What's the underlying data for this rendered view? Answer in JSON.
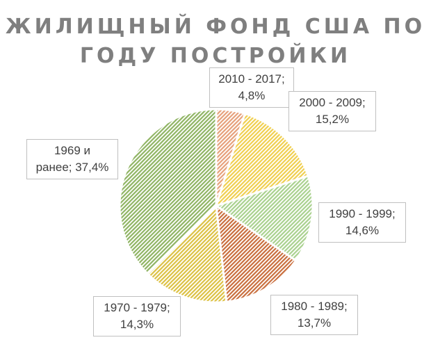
{
  "chart_data": {
    "type": "pie",
    "title_lines": [
      "ЖИЛИЩНЫЙ ФОНД США ПО",
      "ГОДУ ПОСТРОЙКИ"
    ],
    "slices": [
      {
        "category": "2010 - 2017",
        "value": 4.8,
        "value_label": "4,8%",
        "color": "#e6a07a"
      },
      {
        "category": "2000 - 2009",
        "value": 15.2,
        "value_label": "15,2%",
        "color": "#f0cf4e"
      },
      {
        "category": "1990 - 1999",
        "value": 14.6,
        "value_label": "14,6%",
        "color": "#a9d18e"
      },
      {
        "category": "1980 - 1989",
        "value": 13.7,
        "value_label": "13,7%",
        "color": "#c96e3d"
      },
      {
        "category": "1970 - 1979",
        "value": 14.3,
        "value_label": "14,3%",
        "color": "#dcc143"
      },
      {
        "category": "1969 и ранее",
        "value": 37.4,
        "value_label": "37,4%",
        "color": "#8fb463"
      }
    ],
    "labels": [
      {
        "line1": "2010 - 2017;",
        "line2": "4,8%"
      },
      {
        "line1": "2000 - 2009;",
        "line2": "15,2%"
      },
      {
        "line1": "1990 - 1999;",
        "line2": "14,6%"
      },
      {
        "line1": "1980 - 1989;",
        "line2": "13,7%"
      },
      {
        "line1": "1970 - 1979;",
        "line2": "14,3%"
      },
      {
        "line1": "1969 и",
        "line2": "ранее; 37,4%"
      }
    ],
    "legend": "none",
    "pattern": "diagonal-hatch"
  }
}
